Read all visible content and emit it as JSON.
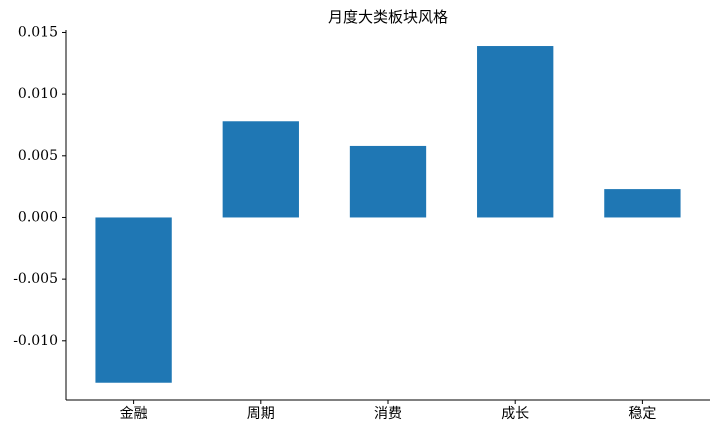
{
  "chart_data": {
    "type": "bar",
    "title": "月度大类板块风格",
    "categories": [
      "金融",
      "周期",
      "消费",
      "成长",
      "稳定"
    ],
    "values": [
      -0.0134,
      0.0078,
      0.0058,
      0.0139,
      0.0023
    ],
    "color": "#1f77b4",
    "ylim": [
      -0.0148,
      0.0152
    ],
    "yticks": [
      {
        "value": -0.01,
        "label": "-0.010"
      },
      {
        "value": -0.005,
        "label": "-0.005"
      },
      {
        "value": 0,
        "label": "0.000"
      },
      {
        "value": 0.005,
        "label": "0.005"
      },
      {
        "value": 0.01,
        "label": "0.010"
      },
      {
        "value": 0.015,
        "label": "0.015"
      }
    ],
    "grid": false
  }
}
